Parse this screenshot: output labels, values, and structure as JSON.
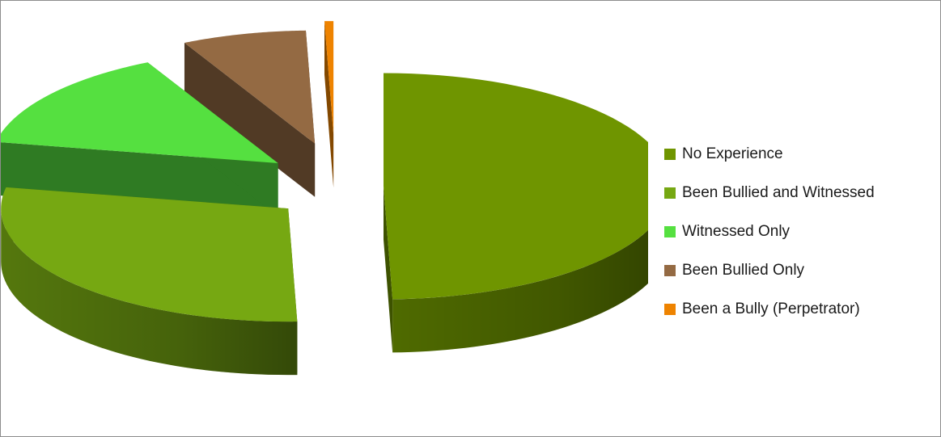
{
  "chart_data": {
    "type": "pie",
    "style": "3d-exploded",
    "legend_position": "right",
    "categories": [
      "No Experience",
      "Been Bullied and Witnessed",
      "Witnessed Only",
      "Been Bullied Only",
      "Been a Bully (Perpetrator)"
    ],
    "values": [
      49.5,
      28.5,
      14.5,
      7.0,
      0.5
    ],
    "unit": "percent",
    "colors": [
      "#6f9500",
      "#76a812",
      "#55e040",
      "#946a43",
      "#ee8300"
    ]
  }
}
